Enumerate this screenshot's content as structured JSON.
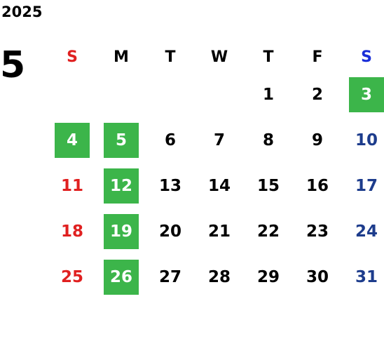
{
  "calendar": {
    "year": "2025",
    "month": "5",
    "weekdays": [
      "S",
      "M",
      "T",
      "W",
      "T",
      "F",
      "S"
    ],
    "colors": {
      "sunday": "#e02020",
      "saturday_header": "#1a2ed8",
      "saturday_days": "#1d3c8c",
      "weekday": "#000000",
      "highlight_bg": "#3cb54a",
      "highlight_text": "#ffffff"
    },
    "weeks": [
      [
        "",
        "",
        "",
        "",
        "1",
        "2",
        "3"
      ],
      [
        "4",
        "5",
        "6",
        "7",
        "8",
        "9",
        "10"
      ],
      [
        "11",
        "12",
        "13",
        "14",
        "15",
        "16",
        "17"
      ],
      [
        "18",
        "19",
        "20",
        "21",
        "22",
        "23",
        "24"
      ],
      [
        "25",
        "26",
        "27",
        "28",
        "29",
        "30",
        "31"
      ]
    ],
    "highlighted_days": [
      "3",
      "4",
      "5",
      "12",
      "19",
      "26"
    ]
  }
}
